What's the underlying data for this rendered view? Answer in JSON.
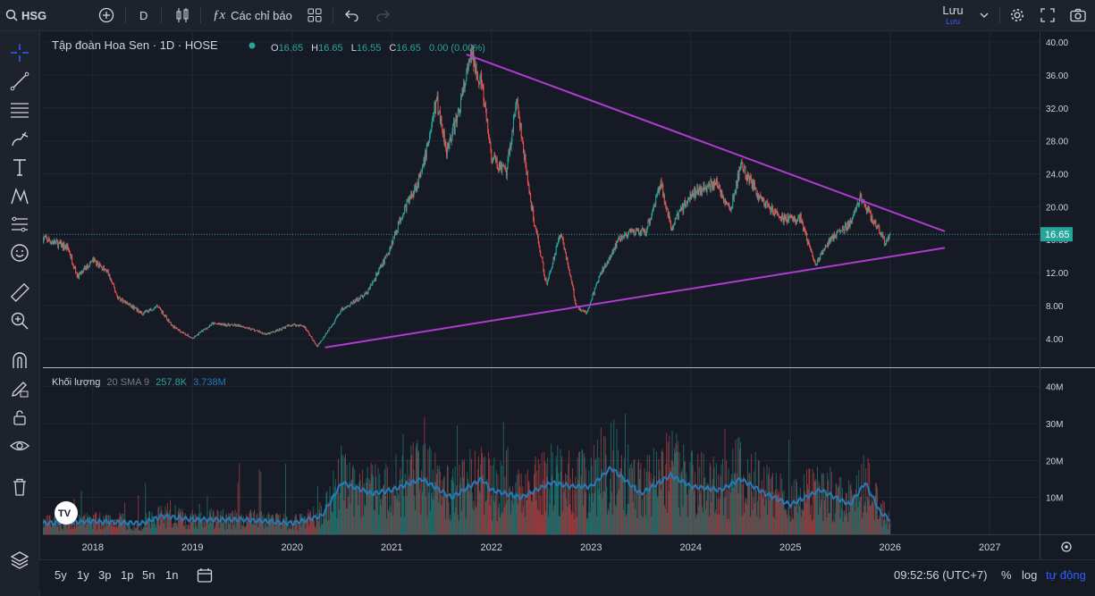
{
  "toolbar": {
    "symbol": "HSG",
    "interval": "D",
    "indicators_label": "Các chỉ báo",
    "save_label": "Lưu",
    "save_sub": "Lưu"
  },
  "legend": {
    "name": "Tập đoàn Hoa Sen · 1D · HOSE",
    "o_label": "O",
    "o": "16.65",
    "h_label": "H",
    "h": "16.65",
    "l_label": "L",
    "l": "16.55",
    "c_label": "C",
    "c": "16.65",
    "change": "0.00 (0.00%)"
  },
  "volume_legend": {
    "title": "Khối lượng",
    "sma": "20 SMA 9",
    "v1": "257.8K",
    "v2": "3.738M"
  },
  "price_tag": "16.65",
  "bottom": {
    "ranges": [
      "5y",
      "1y",
      "3p",
      "1p",
      "5n",
      "1n"
    ],
    "time": "09:52:56 (UTC+7)",
    "pct": "%",
    "log": "log",
    "auto": "tự động"
  },
  "colors": {
    "up": "#26a69a",
    "down": "#ef5350",
    "trendline": "#b03bd0",
    "bg": "#161a25",
    "sma": "#2979b5"
  },
  "chart_data": {
    "type": "candlestick",
    "title": "Tập đoàn Hoa Sen · 1D · HOSE",
    "price_ticks": [
      4,
      8,
      12,
      16,
      20,
      24,
      28,
      32,
      36,
      40
    ],
    "price_tick_labels": [
      "4.00",
      "8.00",
      "12.00",
      "16.00",
      "20.00",
      "24.00",
      "28.00",
      "32.00",
      "36.00",
      "40.00"
    ],
    "ylim": [
      0.5,
      41.2
    ],
    "x_range": [
      2017.5,
      2027.5
    ],
    "x_ticks": [
      2018,
      2019,
      2020,
      2021,
      2022,
      2023,
      2024,
      2025,
      2026,
      2027
    ],
    "x_tick_labels": [
      "2018",
      "2019",
      "2020",
      "2021",
      "2022",
      "2023",
      "2024",
      "2025",
      "2026",
      "2027"
    ],
    "last_price": 16.65,
    "price_path": [
      [
        2017.5,
        16.2
      ],
      [
        2017.75,
        15.0
      ],
      [
        2017.85,
        11.5
      ],
      [
        2018.0,
        13.5
      ],
      [
        2018.15,
        12.0
      ],
      [
        2018.25,
        9.0
      ],
      [
        2018.5,
        7.0
      ],
      [
        2018.65,
        8.0
      ],
      [
        2018.8,
        5.5
      ],
      [
        2019.0,
        4.0
      ],
      [
        2019.2,
        5.8
      ],
      [
        2019.5,
        5.5
      ],
      [
        2019.75,
        4.5
      ],
      [
        2020.0,
        5.7
      ],
      [
        2020.12,
        5.5
      ],
      [
        2020.25,
        3.0
      ],
      [
        2020.5,
        7.5
      ],
      [
        2020.75,
        9.5
      ],
      [
        2020.95,
        14.0
      ],
      [
        2021.1,
        19.0
      ],
      [
        2021.3,
        24.0
      ],
      [
        2021.45,
        33.0
      ],
      [
        2021.55,
        27.0
      ],
      [
        2021.65,
        30.5
      ],
      [
        2021.8,
        38.5
      ],
      [
        2021.9,
        35.0
      ],
      [
        2022.0,
        26.0
      ],
      [
        2022.15,
        24.0
      ],
      [
        2022.25,
        33.0
      ],
      [
        2022.4,
        20.0
      ],
      [
        2022.5,
        14.0
      ],
      [
        2022.55,
        10.5
      ],
      [
        2022.7,
        17.0
      ],
      [
        2022.85,
        8.0
      ],
      [
        2022.95,
        7.0
      ],
      [
        2023.1,
        12.0
      ],
      [
        2023.3,
        16.5
      ],
      [
        2023.55,
        17.0
      ],
      [
        2023.7,
        23.0
      ],
      [
        2023.8,
        17.5
      ],
      [
        2024.0,
        21.5
      ],
      [
        2024.25,
        23.0
      ],
      [
        2024.4,
        19.5
      ],
      [
        2024.5,
        25.0
      ],
      [
        2024.7,
        21.0
      ],
      [
        2024.9,
        18.5
      ],
      [
        2025.1,
        18.5
      ],
      [
        2025.25,
        13.0
      ],
      [
        2025.4,
        16.0
      ],
      [
        2025.6,
        18.0
      ],
      [
        2025.7,
        21.0
      ],
      [
        2025.85,
        18.0
      ],
      [
        2025.95,
        15.5
      ],
      [
        2026.0,
        16.65
      ]
    ],
    "volume_axis": {
      "ticks": [
        10,
        20,
        30,
        40
      ],
      "tick_labels": [
        "10M",
        "20M",
        "30M",
        "40M"
      ],
      "ylim": [
        0,
        45
      ]
    },
    "volume_sma_path": [
      [
        2017.5,
        3
      ],
      [
        2018.0,
        3.5
      ],
      [
        2018.5,
        3
      ],
      [
        2018.7,
        5
      ],
      [
        2019.0,
        4
      ],
      [
        2019.5,
        4
      ],
      [
        2020.0,
        3
      ],
      [
        2020.3,
        5
      ],
      [
        2020.5,
        14
      ],
      [
        2020.8,
        11
      ],
      [
        2021.0,
        12
      ],
      [
        2021.3,
        15
      ],
      [
        2021.6,
        10
      ],
      [
        2021.9,
        15
      ],
      [
        2022.0,
        12
      ],
      [
        2022.3,
        10
      ],
      [
        2022.6,
        14
      ],
      [
        2022.8,
        13
      ],
      [
        2023.0,
        13
      ],
      [
        2023.2,
        18
      ],
      [
        2023.5,
        11
      ],
      [
        2023.8,
        16
      ],
      [
        2024.0,
        13
      ],
      [
        2024.3,
        12
      ],
      [
        2024.5,
        15
      ],
      [
        2024.75,
        11
      ],
      [
        2025.0,
        8
      ],
      [
        2025.3,
        12
      ],
      [
        2025.6,
        8
      ],
      [
        2025.75,
        14
      ],
      [
        2025.9,
        6
      ],
      [
        2026.0,
        4
      ]
    ],
    "trendlines": [
      {
        "x1": 2021.75,
        "y1": 38.5,
        "x2": 2026.55,
        "y2": 17.0
      },
      {
        "x1": 2020.33,
        "y1": 2.9,
        "x2": 2026.55,
        "y2": 15.0
      }
    ]
  }
}
